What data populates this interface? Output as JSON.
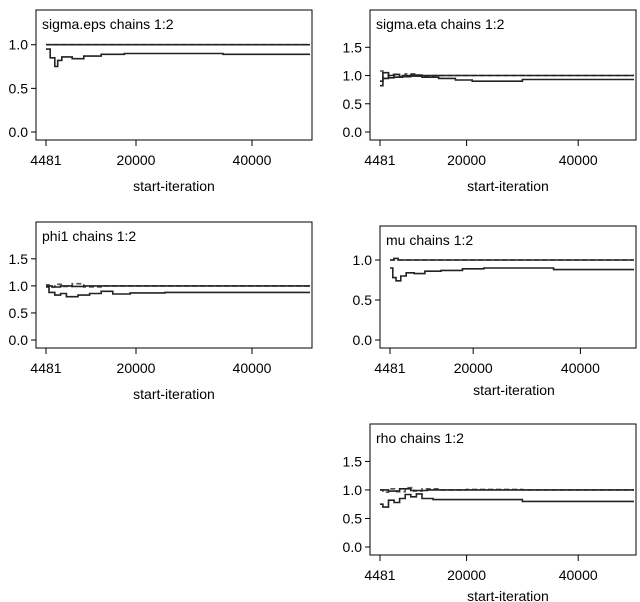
{
  "chart_data": [
    {
      "type": "line",
      "title": "sigma.eps chains 1:2",
      "xlabel": "start-iteration",
      "ylabel": "",
      "xlim": [
        4481,
        50000
      ],
      "ylim": [
        0,
        1.1
      ],
      "xticks": [
        4481,
        20000,
        40000
      ],
      "yticks": [
        0.0,
        0.5,
        1.0
      ],
      "ytick_labels": [
        "0.0",
        "0.5",
        "1.0"
      ],
      "series": [
        {
          "style": "dashed",
          "x": [
            4481,
            50000
          ],
          "y": [
            1.0,
            1.0
          ]
        },
        {
          "style": "solid",
          "x": [
            4481,
            50000
          ],
          "y": [
            1.0,
            1.0
          ]
        },
        {
          "style": "solid",
          "x": [
            4481,
            5200,
            6000,
            6500,
            7200,
            9000,
            11000,
            14000,
            18000,
            25000,
            35000,
            50000
          ],
          "y": [
            0.95,
            0.85,
            0.75,
            0.82,
            0.86,
            0.84,
            0.87,
            0.89,
            0.9,
            0.9,
            0.89,
            0.89
          ]
        }
      ]
    },
    {
      "type": "line",
      "title": "sigma.eta chains 1:2",
      "xlabel": "start-iteration",
      "ylabel": "",
      "xlim": [
        4481,
        50000
      ],
      "ylim": [
        0,
        1.7
      ],
      "xticks": [
        4481,
        20000,
        40000
      ],
      "yticks": [
        0.0,
        0.5,
        1.0,
        1.5
      ],
      "ytick_labels": [
        "0.0",
        "0.5",
        "1.0",
        "1.5"
      ],
      "series": [
        {
          "style": "dashed",
          "x": [
            4481,
            5000,
            6000,
            7500,
            9000,
            11000,
            14000,
            20000,
            30000,
            50000
          ],
          "y": [
            1.08,
            0.95,
            1.02,
            0.97,
            1.03,
            0.99,
            1.0,
            1.0,
            1.0,
            1.0
          ]
        },
        {
          "style": "solid",
          "x": [
            4481,
            5000,
            6000,
            7000,
            8500,
            10000,
            12000,
            15000,
            20000,
            30000,
            40000,
            50000
          ],
          "y": [
            0.82,
            0.95,
            1.0,
            0.97,
            1.0,
            1.01,
            1.0,
            1.0,
            1.0,
            1.0,
            1.0,
            1.0
          ]
        },
        {
          "style": "solid",
          "x": [
            4481,
            5000,
            6000,
            7000,
            8000,
            10000,
            12000,
            15000,
            18000,
            21000,
            25000,
            30000,
            40000,
            50000
          ],
          "y": [
            0.9,
            1.05,
            0.96,
            1.02,
            0.98,
            0.99,
            0.97,
            0.95,
            0.92,
            0.9,
            0.9,
            0.93,
            0.93,
            0.93
          ]
        }
      ]
    },
    {
      "type": "line",
      "title": "phi1 chains 1:2",
      "xlabel": "start-iteration",
      "ylabel": "",
      "xlim": [
        4481,
        50000
      ],
      "ylim": [
        0,
        1.7
      ],
      "xticks": [
        4481,
        20000,
        40000
      ],
      "yticks": [
        0.0,
        0.5,
        1.0,
        1.5
      ],
      "ytick_labels": [
        "0.0",
        "0.5",
        "1.0",
        "1.5"
      ],
      "series": [
        {
          "style": "dashed",
          "x": [
            4481,
            5000,
            6000,
            7500,
            9000,
            11000,
            14000,
            20000,
            30000,
            50000
          ],
          "y": [
            1.02,
            0.98,
            1.03,
            0.99,
            1.04,
            0.98,
            1.0,
            1.0,
            1.0,
            1.0
          ]
        },
        {
          "style": "solid",
          "x": [
            4481,
            5500,
            7000,
            9000,
            11000,
            14000,
            18000,
            25000,
            35000,
            50000
          ],
          "y": [
            1.0,
            0.98,
            1.0,
            0.99,
            1.0,
            1.0,
            1.0,
            1.0,
            1.0,
            1.0
          ]
        },
        {
          "style": "solid",
          "x": [
            4481,
            5000,
            6000,
            7000,
            8000,
            10000,
            12000,
            14000,
            16000,
            19000,
            25000,
            35000,
            50000
          ],
          "y": [
            0.98,
            0.88,
            0.83,
            0.86,
            0.8,
            0.83,
            0.86,
            0.9,
            0.85,
            0.87,
            0.88,
            0.88,
            0.88
          ]
        }
      ]
    },
    {
      "type": "line",
      "title": "mu chains 1:2",
      "xlabel": "start-iteration",
      "ylabel": "",
      "xlim": [
        4481,
        50000
      ],
      "ylim": [
        0,
        1.1
      ],
      "xticks": [
        4481,
        20000,
        40000
      ],
      "yticks": [
        0.0,
        0.5,
        1.0
      ],
      "ytick_labels": [
        "0.0",
        "0.5",
        "1.0"
      ],
      "series": [
        {
          "style": "dashed",
          "x": [
            4481,
            50000
          ],
          "y": [
            1.0,
            1.0
          ]
        },
        {
          "style": "solid",
          "x": [
            4481,
            5200,
            6000,
            50000
          ],
          "y": [
            1.0,
            1.02,
            1.0,
            1.0
          ]
        },
        {
          "style": "solid",
          "x": [
            4481,
            5000,
            5600,
            6500,
            7500,
            9000,
            11000,
            14000,
            18000,
            22000,
            28000,
            35000,
            45000,
            50000
          ],
          "y": [
            0.9,
            0.78,
            0.74,
            0.8,
            0.84,
            0.83,
            0.86,
            0.87,
            0.89,
            0.9,
            0.9,
            0.88,
            0.88,
            0.88
          ]
        }
      ]
    },
    {
      "type": "line",
      "title": "rho chains 1:2",
      "xlabel": "start-iteration",
      "ylabel": "",
      "xlim": [
        4481,
        50000
      ],
      "ylim": [
        0,
        1.7
      ],
      "xticks": [
        4481,
        20000,
        40000
      ],
      "yticks": [
        0.0,
        0.5,
        1.0,
        1.5
      ],
      "ytick_labels": [
        "0.0",
        "0.5",
        "1.0",
        "1.5"
      ],
      "series": [
        {
          "style": "dashed",
          "x": [
            4481,
            5000,
            6000,
            7500,
            9000,
            10500,
            12000,
            15000,
            20000,
            30000,
            50000
          ],
          "y": [
            1.0,
            0.96,
            1.02,
            0.97,
            1.04,
            0.98,
            1.02,
            1.0,
            1.01,
            1.0,
            1.0
          ]
        },
        {
          "style": "solid",
          "x": [
            4481,
            6000,
            8000,
            10000,
            13000,
            18000,
            25000,
            35000,
            50000
          ],
          "y": [
            1.0,
            0.98,
            1.02,
            0.99,
            1.0,
            1.0,
            1.0,
            1.0,
            1.0
          ]
        },
        {
          "style": "solid",
          "x": [
            4481,
            5000,
            6000,
            7000,
            8000,
            9000,
            10000,
            11000,
            12000,
            14000,
            20000,
            26000,
            30000,
            35000,
            40000,
            50000
          ],
          "y": [
            0.75,
            0.7,
            0.82,
            0.78,
            0.85,
            0.92,
            0.88,
            0.93,
            0.85,
            0.83,
            0.83,
            0.83,
            0.8,
            0.8,
            0.8,
            0.8
          ]
        }
      ]
    }
  ]
}
